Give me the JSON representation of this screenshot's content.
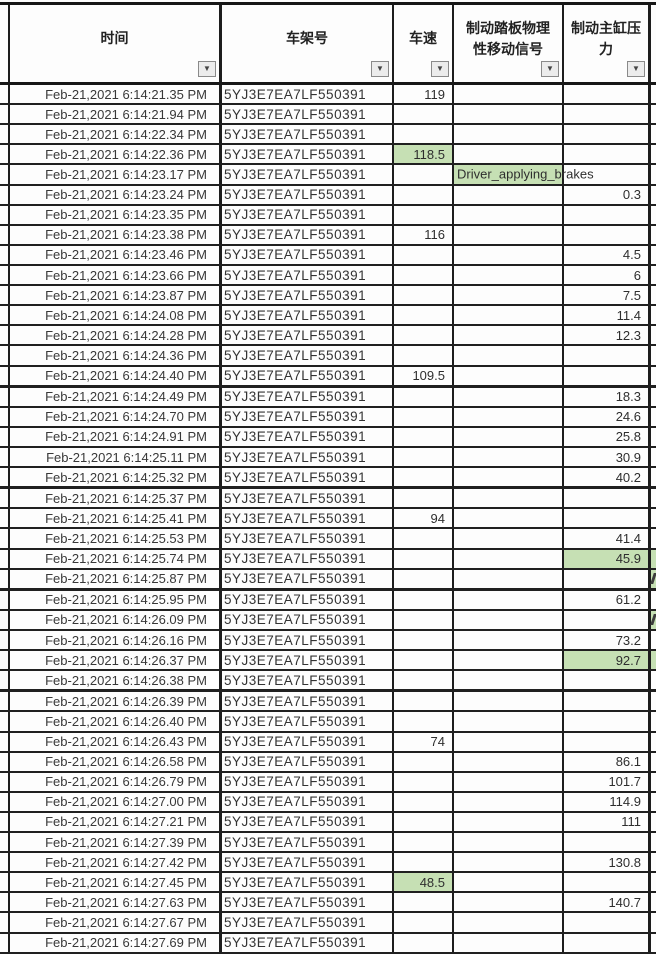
{
  "colors": {
    "highlight_green": "#c6e0b4",
    "grid_line": "#1d1d1d"
  },
  "icons": {
    "filter_dropdown": "▼"
  },
  "columns": [
    {
      "key": "time",
      "label": "时间"
    },
    {
      "key": "vin",
      "label": "车架号"
    },
    {
      "key": "speed",
      "label": "车速"
    },
    {
      "key": "pedal",
      "label": "制动踏板物理性移动信号"
    },
    {
      "key": "pressure",
      "label": "制动主缸压力"
    }
  ],
  "rows": [
    {
      "time": "Feb-21,2021 6:14:21.35 PM",
      "vin": "5YJ3E7EA7LF550391",
      "speed": "119",
      "pedal": "",
      "pressure": ""
    },
    {
      "time": "Feb-21,2021 6:14:21.94 PM",
      "vin": "5YJ3E7EA7LF550391",
      "speed": "",
      "pedal": "",
      "pressure": ""
    },
    {
      "time": "Feb-21,2021 6:14:22.34 PM",
      "vin": "5YJ3E7EA7LF550391",
      "speed": "",
      "pedal": "",
      "pressure": ""
    },
    {
      "time": "Feb-21,2021 6:14:22.36 PM",
      "vin": "5YJ3E7EA7LF550391",
      "speed": "118.5",
      "pedal": "",
      "pressure": "",
      "highlight": "speed"
    },
    {
      "time": "Feb-21,2021 6:14:23.17 PM",
      "vin": "5YJ3E7EA7LF550391",
      "speed": "",
      "pedal": "Driver_applying_brakes",
      "pressure": "",
      "highlight": "pedal"
    },
    {
      "time": "Feb-21,2021 6:14:23.24 PM",
      "vin": "5YJ3E7EA7LF550391",
      "speed": "",
      "pedal": "",
      "pressure": "0.3"
    },
    {
      "time": "Feb-21,2021 6:14:23.35 PM",
      "vin": "5YJ3E7EA7LF550391",
      "speed": "",
      "pedal": "",
      "pressure": ""
    },
    {
      "time": "Feb-21,2021 6:14:23.38 PM",
      "vin": "5YJ3E7EA7LF550391",
      "speed": "116",
      "pedal": "",
      "pressure": ""
    },
    {
      "time": "Feb-21,2021 6:14:23.46 PM",
      "vin": "5YJ3E7EA7LF550391",
      "speed": "",
      "pedal": "",
      "pressure": "4.5"
    },
    {
      "time": "Feb-21,2021 6:14:23.66 PM",
      "vin": "5YJ3E7EA7LF550391",
      "speed": "",
      "pedal": "",
      "pressure": "6"
    },
    {
      "time": "Feb-21,2021 6:14:23.87 PM",
      "vin": "5YJ3E7EA7LF550391",
      "speed": "",
      "pedal": "",
      "pressure": "7.5"
    },
    {
      "time": "Feb-21,2021 6:14:24.08 PM",
      "vin": "5YJ3E7EA7LF550391",
      "speed": "",
      "pedal": "",
      "pressure": "11.4"
    },
    {
      "time": "Feb-21,2021 6:14:24.28 PM",
      "vin": "5YJ3E7EA7LF550391",
      "speed": "",
      "pedal": "",
      "pressure": "12.3"
    },
    {
      "time": "Feb-21,2021 6:14:24.36 PM",
      "vin": "5YJ3E7EA7LF550391",
      "speed": "",
      "pedal": "",
      "pressure": ""
    },
    {
      "time": "Feb-21,2021 6:14:24.40 PM",
      "vin": "5YJ3E7EA7LF550391",
      "speed": "109.5",
      "pedal": "",
      "pressure": "",
      "thick_border": true
    },
    {
      "time": "Feb-21,2021 6:14:24.49 PM",
      "vin": "5YJ3E7EA7LF550391",
      "speed": "",
      "pedal": "",
      "pressure": "18.3"
    },
    {
      "time": "Feb-21,2021 6:14:24.70 PM",
      "vin": "5YJ3E7EA7LF550391",
      "speed": "",
      "pedal": "",
      "pressure": "24.6"
    },
    {
      "time": "Feb-21,2021 6:14:24.91 PM",
      "vin": "5YJ3E7EA7LF550391",
      "speed": "",
      "pedal": "",
      "pressure": "25.8"
    },
    {
      "time": "Feb-21,2021 6:14:25.11 PM",
      "vin": "5YJ3E7EA7LF550391",
      "speed": "",
      "pedal": "",
      "pressure": "30.9"
    },
    {
      "time": "Feb-21,2021 6:14:25.32 PM",
      "vin": "5YJ3E7EA7LF550391",
      "speed": "",
      "pedal": "",
      "pressure": "40.2",
      "thick_border": true
    },
    {
      "time": "Feb-21,2021 6:14:25.37 PM",
      "vin": "5YJ3E7EA7LF550391",
      "speed": "",
      "pedal": "",
      "pressure": ""
    },
    {
      "time": "Feb-21,2021 6:14:25.41 PM",
      "vin": "5YJ3E7EA7LF550391",
      "speed": "94",
      "pedal": "",
      "pressure": ""
    },
    {
      "time": "Feb-21,2021 6:14:25.53 PM",
      "vin": "5YJ3E7EA7LF550391",
      "speed": "",
      "pedal": "",
      "pressure": "41.4"
    },
    {
      "time": "Feb-21,2021 6:14:25.74 PM",
      "vin": "5YJ3E7EA7LF550391",
      "speed": "",
      "pedal": "",
      "pressure": "45.9",
      "highlight": "pressure"
    },
    {
      "time": "Feb-21,2021 6:14:25.87 PM",
      "vin": "5YJ3E7EA7LF550391",
      "speed": "",
      "pedal": "",
      "pressure": "",
      "edge_fragment": true,
      "thick_border": true
    },
    {
      "time": "Feb-21,2021 6:14:25.95 PM",
      "vin": "5YJ3E7EA7LF550391",
      "speed": "",
      "pedal": "",
      "pressure": "61.2"
    },
    {
      "time": "Feb-21,2021 6:14:26.09 PM",
      "vin": "5YJ3E7EA7LF550391",
      "speed": "",
      "pedal": "",
      "pressure": "",
      "edge_fragment": true
    },
    {
      "time": "Feb-21,2021 6:14:26.16 PM",
      "vin": "5YJ3E7EA7LF550391",
      "speed": "",
      "pedal": "",
      "pressure": "73.2"
    },
    {
      "time": "Feb-21,2021 6:14:26.37 PM",
      "vin": "5YJ3E7EA7LF550391",
      "speed": "",
      "pedal": "",
      "pressure": "92.7",
      "highlight": "pressure"
    },
    {
      "time": "Feb-21,2021 6:14:26.38 PM",
      "vin": "5YJ3E7EA7LF550391",
      "speed": "",
      "pedal": "",
      "pressure": "",
      "thick_border": true
    },
    {
      "time": "Feb-21,2021 6:14:26.39 PM",
      "vin": "5YJ3E7EA7LF550391",
      "speed": "",
      "pedal": "",
      "pressure": ""
    },
    {
      "time": "Feb-21,2021 6:14:26.40 PM",
      "vin": "5YJ3E7EA7LF550391",
      "speed": "",
      "pedal": "",
      "pressure": ""
    },
    {
      "time": "Feb-21,2021 6:14:26.43 PM",
      "vin": "5YJ3E7EA7LF550391",
      "speed": "74",
      "pedal": "",
      "pressure": ""
    },
    {
      "time": "Feb-21,2021 6:14:26.58 PM",
      "vin": "5YJ3E7EA7LF550391",
      "speed": "",
      "pedal": "",
      "pressure": "86.1"
    },
    {
      "time": "Feb-21,2021 6:14:26.79 PM",
      "vin": "5YJ3E7EA7LF550391",
      "speed": "",
      "pedal": "",
      "pressure": "101.7"
    },
    {
      "time": "Feb-21,2021 6:14:27.00 PM",
      "vin": "5YJ3E7EA7LF550391",
      "speed": "",
      "pedal": "",
      "pressure": "114.9"
    },
    {
      "time": "Feb-21,2021 6:14:27.21 PM",
      "vin": "5YJ3E7EA7LF550391",
      "speed": "",
      "pedal": "",
      "pressure": "111"
    },
    {
      "time": "Feb-21,2021 6:14:27.39 PM",
      "vin": "5YJ3E7EA7LF550391",
      "speed": "",
      "pedal": "",
      "pressure": ""
    },
    {
      "time": "Feb-21,2021 6:14:27.42 PM",
      "vin": "5YJ3E7EA7LF550391",
      "speed": "",
      "pedal": "",
      "pressure": "130.8"
    },
    {
      "time": "Feb-21,2021 6:14:27.45 PM",
      "vin": "5YJ3E7EA7LF550391",
      "speed": "48.5",
      "pedal": "",
      "pressure": "",
      "highlight": "speed"
    },
    {
      "time": "Feb-21,2021 6:14:27.63 PM",
      "vin": "5YJ3E7EA7LF550391",
      "speed": "",
      "pedal": "",
      "pressure": "140.7"
    },
    {
      "time": "Feb-21,2021 6:14:27.67 PM",
      "vin": "5YJ3E7EA7LF550391",
      "speed": "",
      "pedal": "",
      "pressure": ""
    },
    {
      "time": "Feb-21,2021 6:14:27.69 PM",
      "vin": "5YJ3E7EA7LF550391",
      "speed": "",
      "pedal": "",
      "pressure": ""
    }
  ]
}
